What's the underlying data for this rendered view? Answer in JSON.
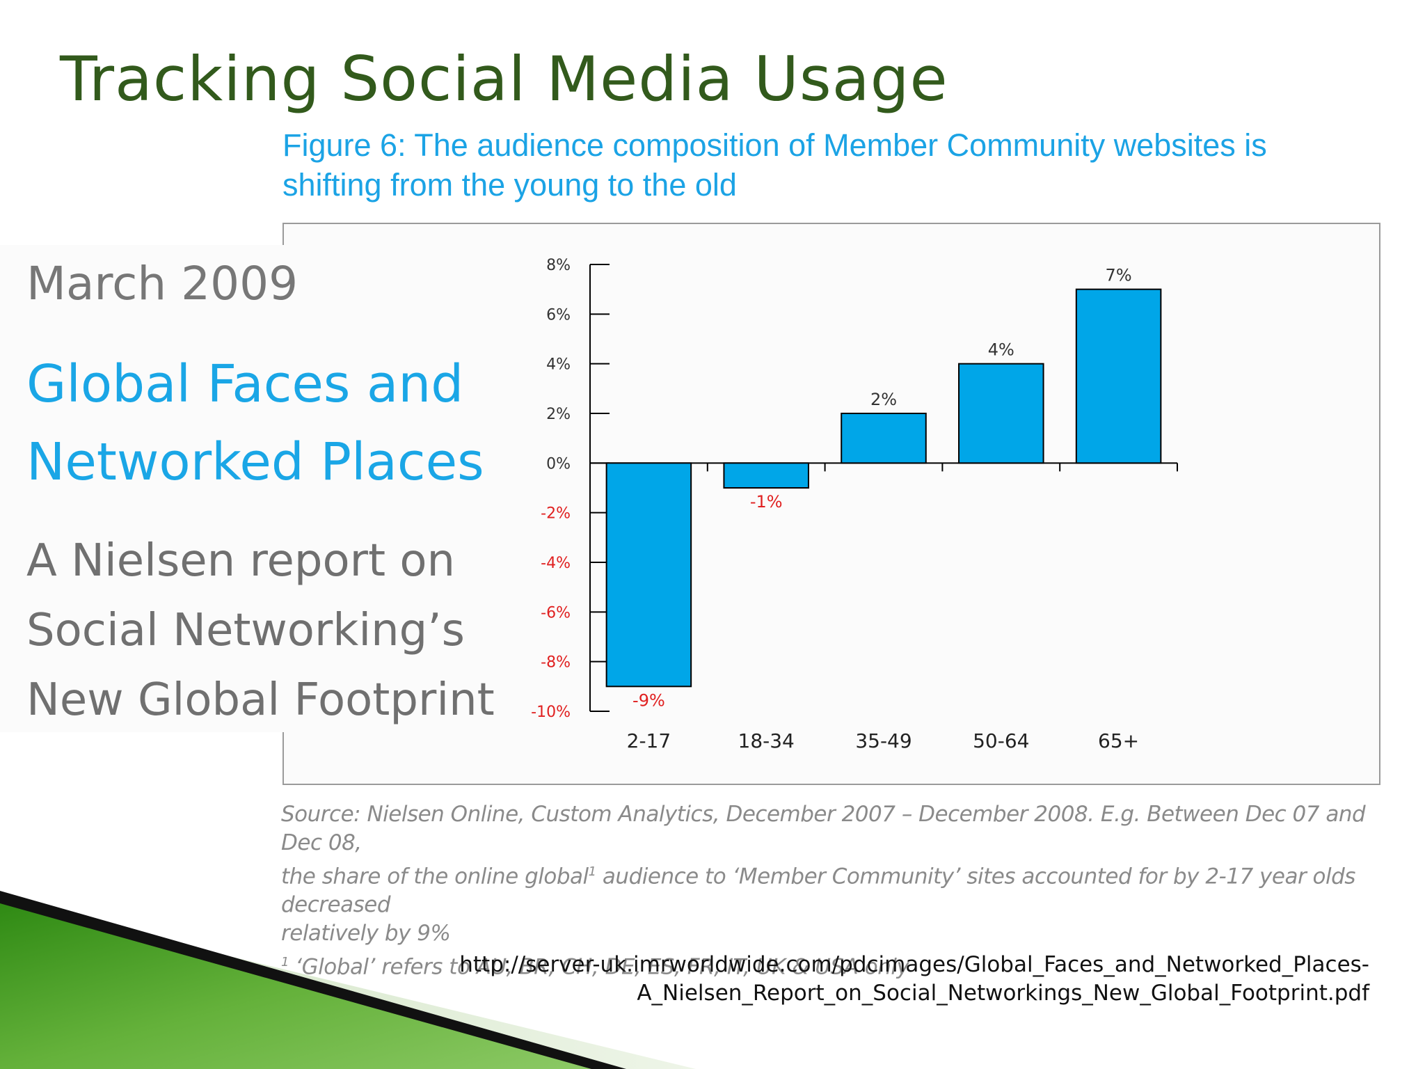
{
  "slide": {
    "title": "Tracking Social Media Usage"
  },
  "figure": {
    "caption_line1": "Figure 6: The audience composition of Member Community websites is",
    "caption_line2": "shifting from the young to the old"
  },
  "report": {
    "date": "March 2009",
    "title_line1": "Global Faces and",
    "title_line2": "Networked Places",
    "sub_line1": "A Nielsen report on",
    "sub_line2": "Social Networking’s",
    "sub_line3": "New Global Footprint"
  },
  "source": {
    "line1": "Source: Nielsen Online, Custom Analytics, December 2007 – December 2008. E.g. Between Dec 07 and Dec 08,",
    "line2_a": "the share of the online global",
    "line2_sup": "1",
    "line2_b": " audience to ‘Member Community’ sites accounted for by 2-17 year olds decreased",
    "line3": "relatively by 9%",
    "footnote_sup": "1",
    "footnote": " ‘Global’ refers to AU, BR, CH, DE, ES, FR, IT, UK & USA only"
  },
  "url": {
    "line1": "http://server-uk.imrworldwide.com/pdcimages/Global_Faces_and_Networked_Places-",
    "line2": "A_Nielsen_Report_on_Social_Networkings_New_Global_Footprint.pdf"
  },
  "colors": {
    "bar_fill": "#00a6e8",
    "bar_stroke": "#000000",
    "negative_label": "#e02020",
    "positive_label": "#333333"
  },
  "chart_data": {
    "type": "bar",
    "title": "",
    "xlabel": "",
    "ylabel": "",
    "categories": [
      "2-17",
      "18-34",
      "35-49",
      "50-64",
      "65+"
    ],
    "values": [
      -9,
      -1,
      2,
      4,
      7
    ],
    "data_labels": [
      "-9%",
      "-1%",
      "2%",
      "4%",
      "7%"
    ],
    "ylim": [
      -10,
      8
    ],
    "yticks": [
      8,
      6,
      4,
      2,
      0,
      -2,
      -4,
      -6,
      -8,
      -10
    ],
    "ytick_labels": [
      "8%",
      "6%",
      "4%",
      "2%",
      "0%",
      "-2%",
      "-4%",
      "-6%",
      "-8%",
      "-10%"
    ],
    "grid": false,
    "legend": "none"
  }
}
